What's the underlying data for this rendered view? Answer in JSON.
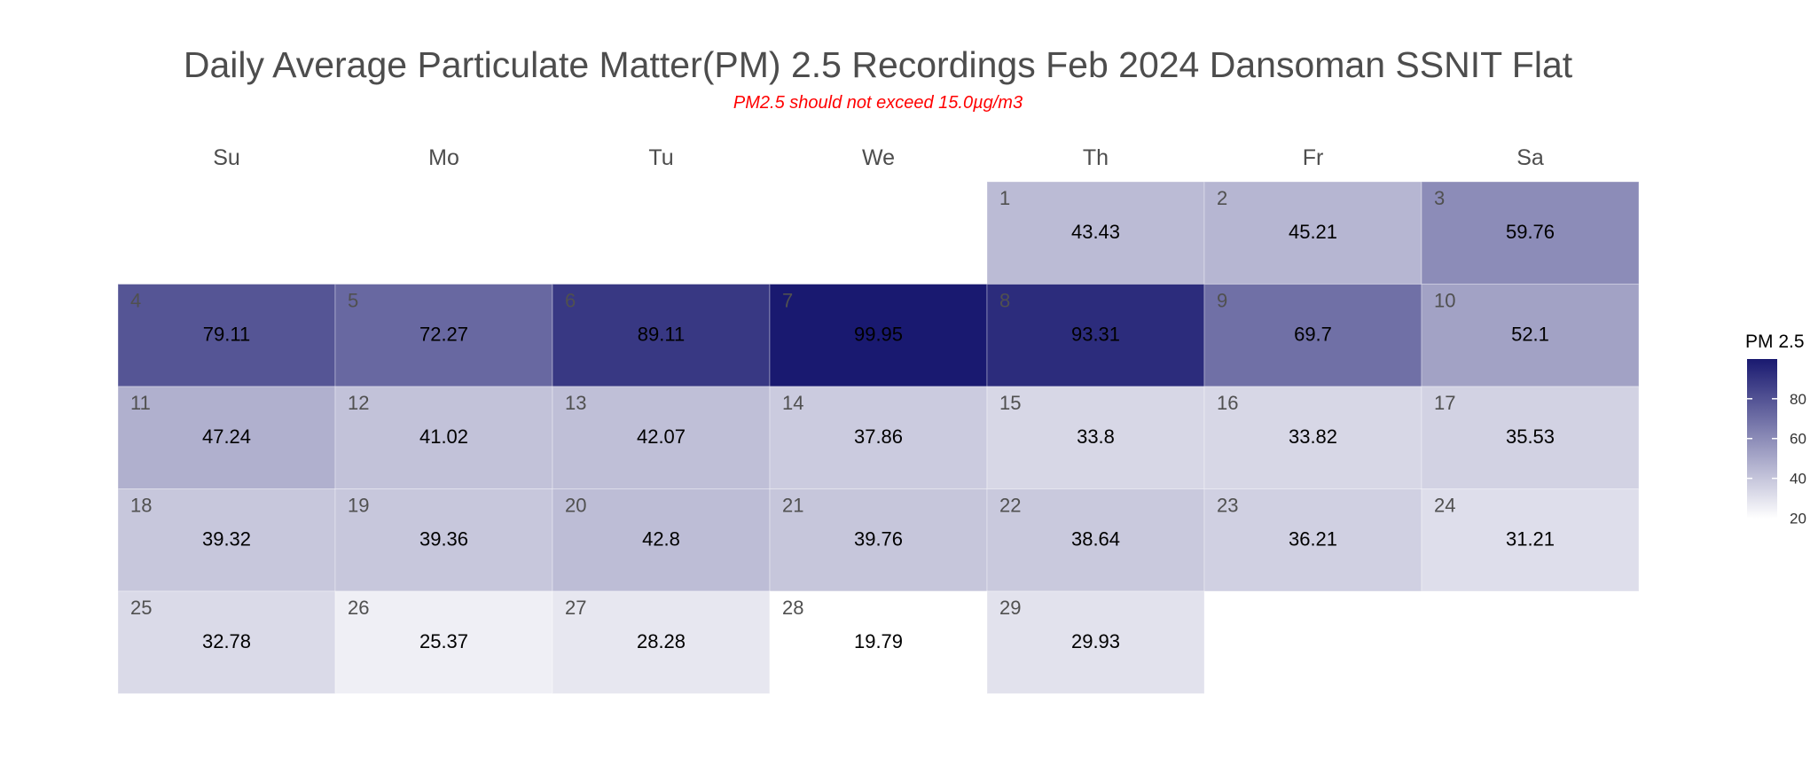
{
  "title": "Daily Average Particulate Matter(PM) 2.5 Recordings Feb 2024 Dansoman SSNIT Flat",
  "subtitle": "PM2.5 should not exceed 15.0µg/m3",
  "chart_data": {
    "type": "heatmap",
    "title": "Daily Average Particulate Matter(PM) 2.5 Recordings Feb 2024 Dansoman SSNIT Flat",
    "subtitle": "PM2.5 should not exceed 15.0µg/m3",
    "weekdays": [
      "Su",
      "Mo",
      "Tu",
      "We",
      "Th",
      "Fr",
      "Sa"
    ],
    "first_weekday_index": 4,
    "days": [
      1,
      2,
      3,
      4,
      5,
      6,
      7,
      8,
      9,
      10,
      11,
      12,
      13,
      14,
      15,
      16,
      17,
      18,
      19,
      20,
      21,
      22,
      23,
      24,
      25,
      26,
      27,
      28,
      29
    ],
    "values": [
      43.43,
      45.21,
      59.76,
      79.11,
      72.27,
      89.11,
      99.95,
      93.31,
      69.7,
      52.1,
      47.24,
      41.02,
      42.07,
      37.86,
      33.8,
      33.82,
      35.53,
      39.32,
      39.36,
      42.8,
      39.76,
      38.64,
      36.21,
      31.21,
      32.78,
      25.37,
      28.28,
      19.79,
      29.93
    ],
    "value_labels": [
      "43.43",
      "45.21",
      "59.76",
      "79.11",
      "72.27",
      "89.11",
      "99.95",
      "93.31",
      "69.7",
      "52.1",
      "47.24",
      "41.02",
      "42.07",
      "37.86",
      "33.8",
      "33.82",
      "35.53",
      "39.32",
      "39.36",
      "42.8",
      "39.76",
      "38.64",
      "36.21",
      "31.21",
      "32.78",
      "25.37",
      "28.28",
      "19.79",
      "29.93"
    ],
    "legend": {
      "title": "PM 2.5",
      "ticks": [
        20,
        40,
        60,
        80
      ],
      "tick_labels": [
        "20",
        "40",
        "60",
        "80"
      ],
      "range": [
        19.79,
        99.95
      ],
      "placement": "right"
    },
    "colors": {
      "low": "#ffffff",
      "high": "#191970"
    }
  }
}
